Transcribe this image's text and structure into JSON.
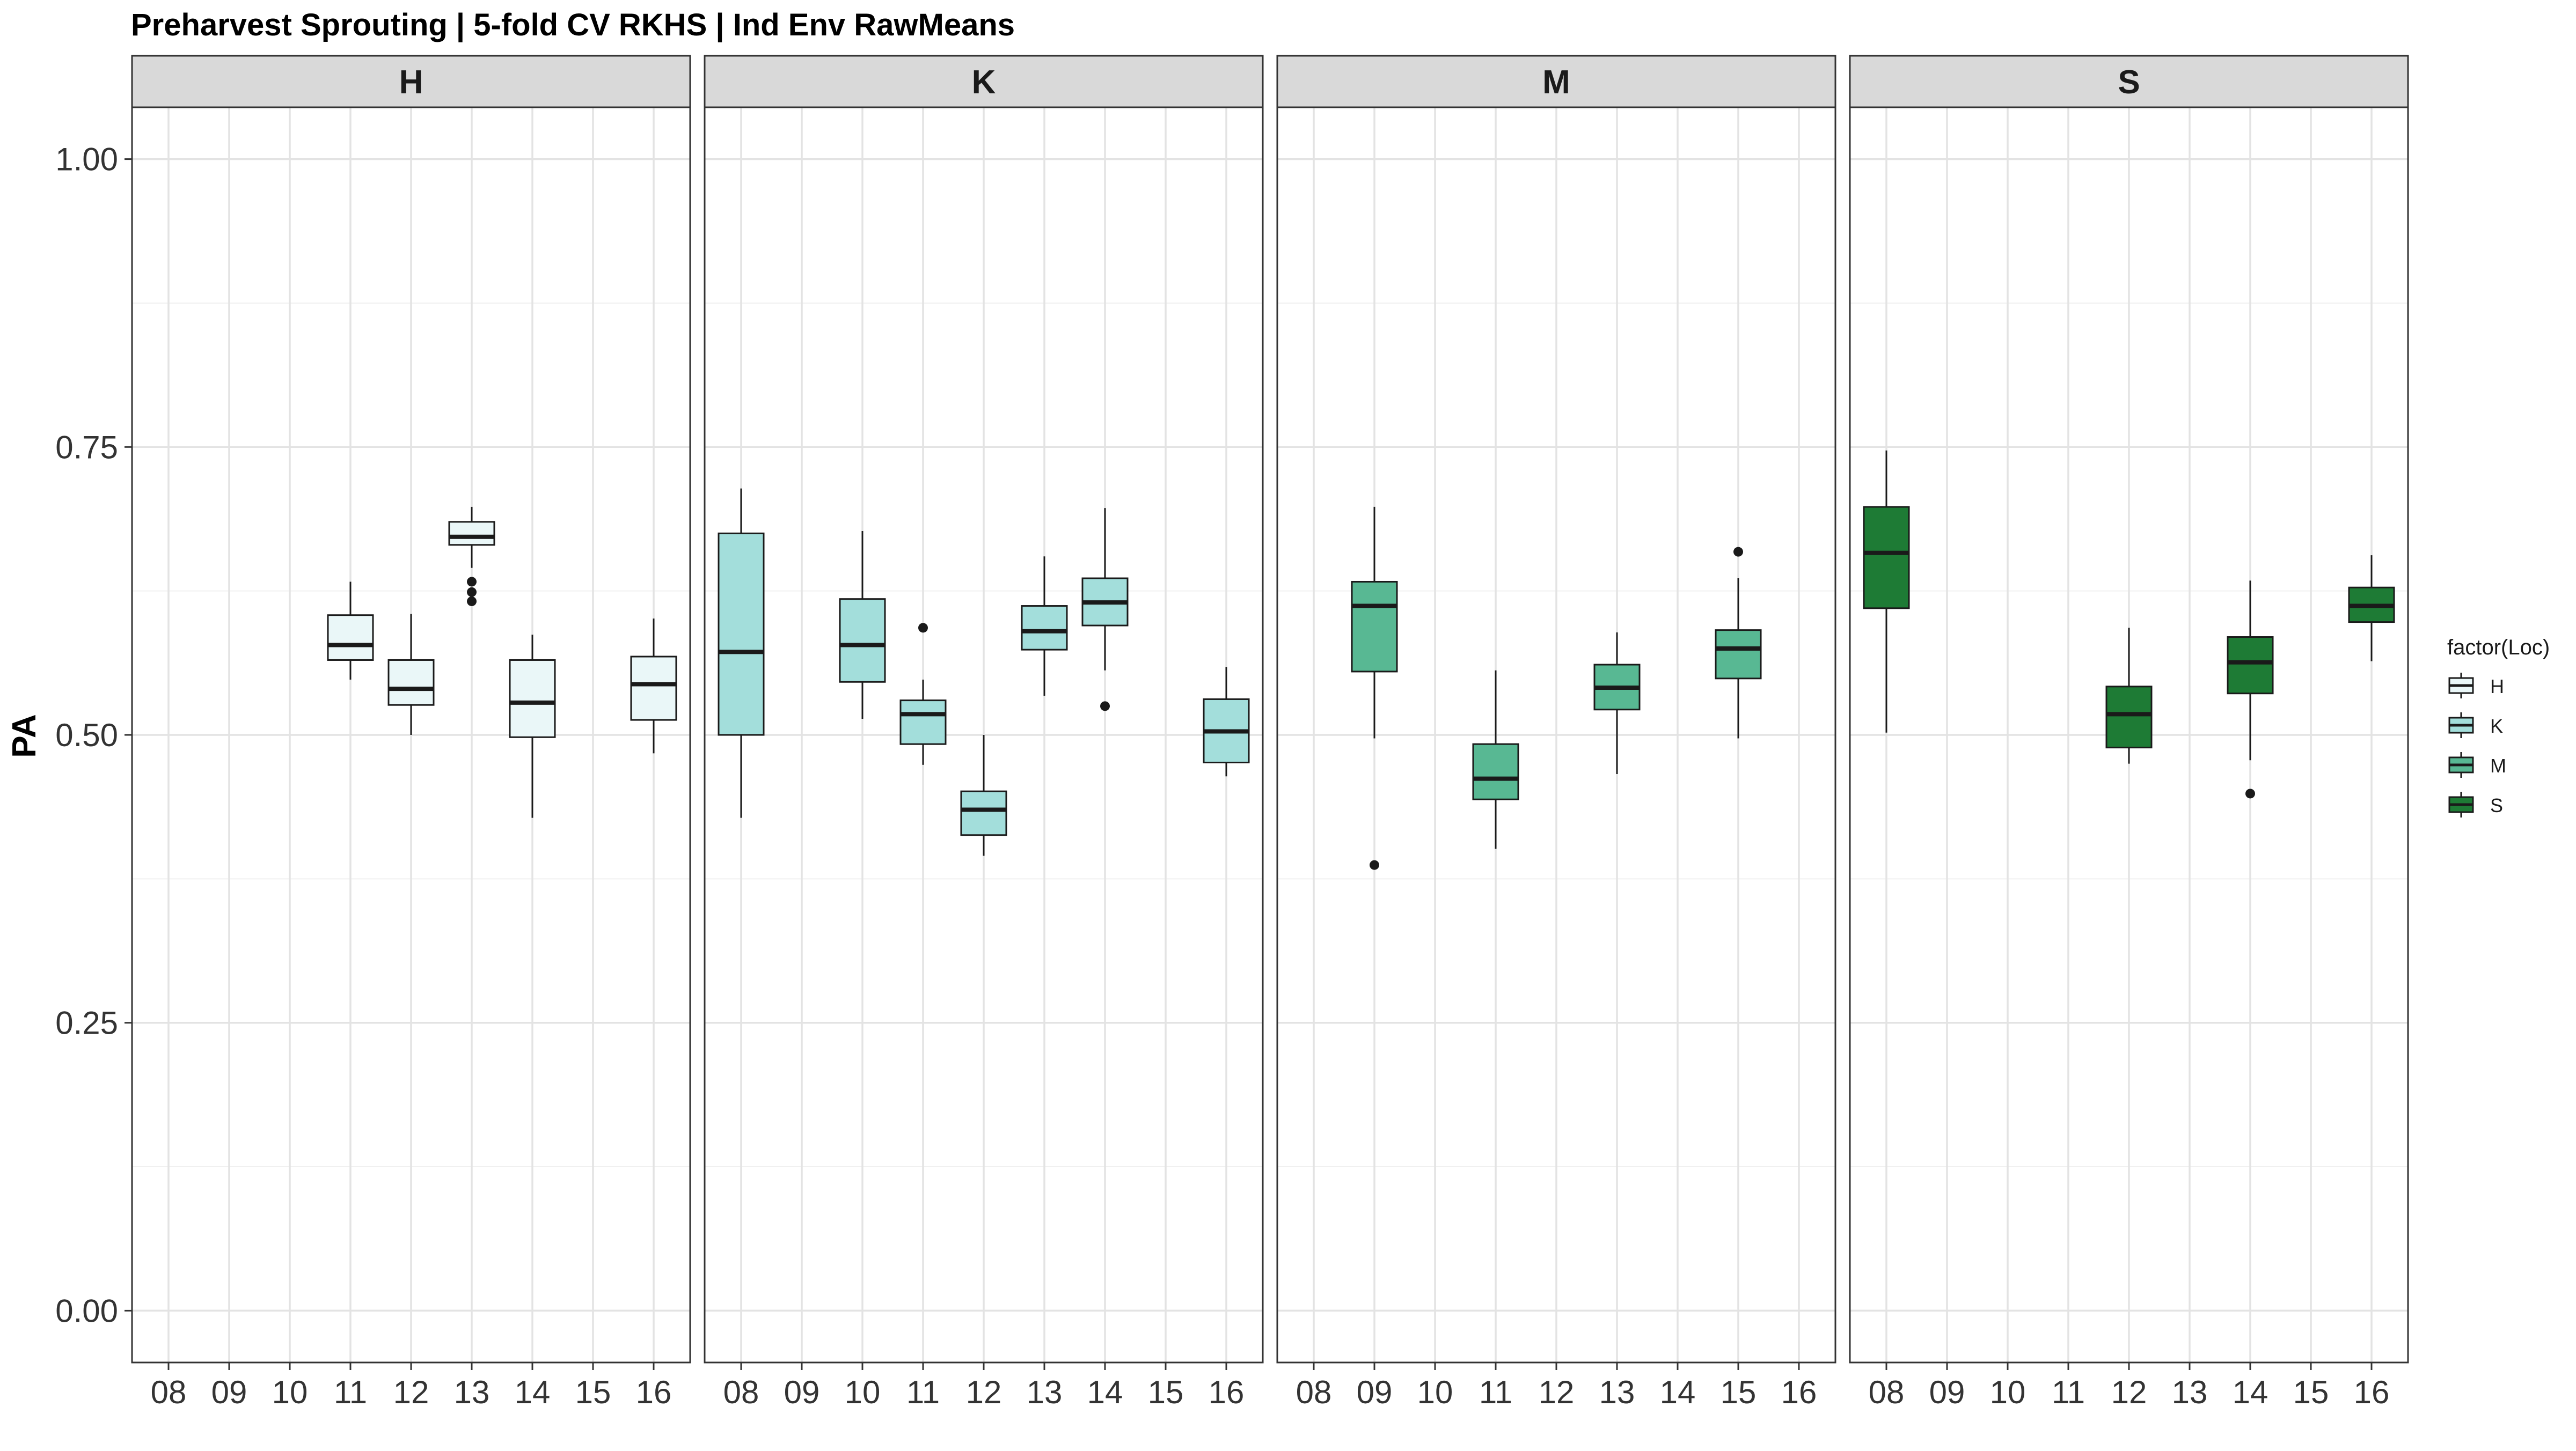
{
  "chart_data": {
    "type": "boxplot",
    "title": "Preharvest Sprouting | 5-fold CV RKHS | Ind Env RawMeans",
    "xlabel": "",
    "ylabel": "PA",
    "ylim": [
      -0.045,
      1.045
    ],
    "yticks": [
      0.0,
      0.25,
      0.5,
      0.75,
      1.0
    ],
    "ytick_labels": [
      "0.00",
      "0.25",
      "0.50",
      "0.75",
      "1.00"
    ],
    "categories": [
      "08",
      "09",
      "10",
      "11",
      "12",
      "13",
      "14",
      "15",
      "16"
    ],
    "grid": true,
    "legend": {
      "title": "factor(Loc)",
      "position": "right",
      "entries": [
        {
          "label": "H",
          "color": "#EAF7F8"
        },
        {
          "label": "K",
          "color": "#A3DEDB"
        },
        {
          "label": "M",
          "color": "#58B893"
        },
        {
          "label": "S",
          "color": "#1E7B35"
        }
      ]
    },
    "facets": [
      {
        "label": "H",
        "color": "#EAF7F8",
        "boxes": [
          {
            "x": "11",
            "min": 0.548,
            "q1": 0.565,
            "median": 0.578,
            "q3": 0.604,
            "max": 0.633,
            "outliers": []
          },
          {
            "x": "12",
            "min": 0.5,
            "q1": 0.526,
            "median": 0.54,
            "q3": 0.565,
            "max": 0.605,
            "outliers": []
          },
          {
            "x": "13",
            "min": 0.645,
            "q1": 0.665,
            "median": 0.672,
            "q3": 0.685,
            "max": 0.698,
            "outliers": [
              0.633,
              0.624,
              0.616
            ]
          },
          {
            "x": "14",
            "min": 0.428,
            "q1": 0.498,
            "median": 0.528,
            "q3": 0.565,
            "max": 0.587,
            "outliers": []
          },
          {
            "x": "16",
            "min": 0.484,
            "q1": 0.513,
            "median": 0.544,
            "q3": 0.568,
            "max": 0.601,
            "outliers": []
          }
        ]
      },
      {
        "label": "K",
        "color": "#A3DEDB",
        "boxes": [
          {
            "x": "08",
            "min": 0.428,
            "q1": 0.5,
            "median": 0.572,
            "q3": 0.675,
            "max": 0.714,
            "outliers": []
          },
          {
            "x": "10",
            "min": 0.514,
            "q1": 0.546,
            "median": 0.578,
            "q3": 0.618,
            "max": 0.677,
            "outliers": []
          },
          {
            "x": "11",
            "min": 0.474,
            "q1": 0.492,
            "median": 0.518,
            "q3": 0.53,
            "max": 0.548,
            "outliers": [
              0.593
            ]
          },
          {
            "x": "12",
            "min": 0.395,
            "q1": 0.413,
            "median": 0.435,
            "q3": 0.451,
            "max": 0.5,
            "outliers": []
          },
          {
            "x": "13",
            "min": 0.534,
            "q1": 0.574,
            "median": 0.59,
            "q3": 0.612,
            "max": 0.655,
            "outliers": []
          },
          {
            "x": "14",
            "min": 0.556,
            "q1": 0.595,
            "median": 0.615,
            "q3": 0.636,
            "max": 0.697,
            "outliers": [
              0.525
            ]
          },
          {
            "x": "16",
            "min": 0.464,
            "q1": 0.476,
            "median": 0.503,
            "q3": 0.531,
            "max": 0.559,
            "outliers": []
          }
        ]
      },
      {
        "label": "M",
        "color": "#58B893",
        "boxes": [
          {
            "x": "09",
            "min": 0.497,
            "q1": 0.555,
            "median": 0.612,
            "q3": 0.633,
            "max": 0.698,
            "outliers": [
              0.387
            ]
          },
          {
            "x": "11",
            "min": 0.401,
            "q1": 0.444,
            "median": 0.462,
            "q3": 0.492,
            "max": 0.556,
            "outliers": []
          },
          {
            "x": "13",
            "min": 0.466,
            "q1": 0.522,
            "median": 0.541,
            "q3": 0.561,
            "max": 0.589,
            "outliers": []
          },
          {
            "x": "15",
            "min": 0.497,
            "q1": 0.549,
            "median": 0.575,
            "q3": 0.591,
            "max": 0.636,
            "outliers": [
              0.659
            ]
          }
        ]
      },
      {
        "label": "S",
        "color": "#1E7B35",
        "boxes": [
          {
            "x": "08",
            "min": 0.502,
            "q1": 0.61,
            "median": 0.658,
            "q3": 0.698,
            "max": 0.747,
            "outliers": []
          },
          {
            "x": "12",
            "min": 0.475,
            "q1": 0.489,
            "median": 0.518,
            "q3": 0.542,
            "max": 0.593,
            "outliers": []
          },
          {
            "x": "14",
            "min": 0.478,
            "q1": 0.536,
            "median": 0.563,
            "q3": 0.585,
            "max": 0.634,
            "outliers": [
              0.449
            ]
          },
          {
            "x": "16",
            "min": 0.564,
            "q1": 0.598,
            "median": 0.612,
            "q3": 0.628,
            "max": 0.656,
            "outliers": []
          }
        ]
      }
    ]
  }
}
